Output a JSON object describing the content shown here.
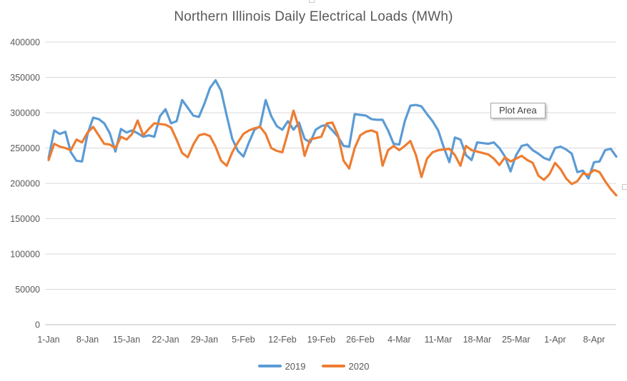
{
  "tooltip": {
    "label": "Plot Area"
  },
  "chart_data": {
    "type": "line",
    "title": "Northern Illinois Daily Electrical Loads (MWh)",
    "xlabel": "",
    "ylabel": "",
    "ylim": [
      0,
      400000
    ],
    "grid": true,
    "legend_position": "bottom",
    "x_start_date": "1-Jan",
    "x_tick_interval_days": 7,
    "x_tick_labels": [
      "1-Jan",
      "8-Jan",
      "15-Jan",
      "22-Jan",
      "29-Jan",
      "5-Feb",
      "12-Feb",
      "19-Feb",
      "26-Feb",
      "4-Mar",
      "11-Mar",
      "18-Mar",
      "25-Mar",
      "1-Apr",
      "8-Apr"
    ],
    "y_tick_labels": [
      "0",
      "50000",
      "100000",
      "150000",
      "200000",
      "250000",
      "300000",
      "350000",
      "400000"
    ],
    "series": [
      {
        "name": "2019",
        "color": "#5B9BD5",
        "values": [
          236000,
          275000,
          270000,
          273000,
          244000,
          232000,
          231000,
          270000,
          293000,
          291000,
          285000,
          271000,
          245000,
          277000,
          272000,
          275000,
          271000,
          266000,
          268000,
          266000,
          295000,
          305000,
          285000,
          288000,
          318000,
          307000,
          296000,
          294000,
          313000,
          335000,
          346000,
          331000,
          296000,
          263000,
          246000,
          238000,
          258000,
          276000,
          281000,
          318000,
          295000,
          281000,
          276000,
          288000,
          276000,
          286000,
          263000,
          258000,
          276000,
          281000,
          283000,
          275000,
          266000,
          253000,
          252000,
          298000,
          297000,
          296000,
          291000,
          290000,
          290000,
          275000,
          256000,
          255000,
          288000,
          310000,
          311000,
          309000,
          298000,
          288000,
          275000,
          251000,
          230000,
          265000,
          262000,
          240000,
          233000,
          258000,
          257000,
          256000,
          258000,
          250000,
          238000,
          217000,
          240000,
          253000,
          255000,
          247000,
          242000,
          236000,
          233000,
          250000,
          252000,
          248000,
          242000,
          216000,
          218000,
          207000,
          230000,
          231000,
          247000,
          249000,
          238000
        ]
      },
      {
        "name": "2020",
        "color": "#ED7D31",
        "values": [
          233000,
          256000,
          252000,
          250000,
          247000,
          262000,
          258000,
          272000,
          280000,
          268000,
          256000,
          255000,
          250000,
          266000,
          262000,
          270000,
          289000,
          268000,
          277000,
          285000,
          284000,
          283000,
          279000,
          262000,
          243000,
          237000,
          255000,
          268000,
          270000,
          267000,
          252000,
          232000,
          225000,
          244000,
          258000,
          270000,
          275000,
          278000,
          280000,
          270000,
          250000,
          246000,
          244000,
          272000,
          303000,
          278000,
          239000,
          262000,
          264000,
          266000,
          285000,
          286000,
          268000,
          232000,
          221000,
          250000,
          268000,
          273000,
          275000,
          272000,
          225000,
          247000,
          253000,
          247000,
          253000,
          260000,
          240000,
          209000,
          235000,
          244000,
          247000,
          248000,
          249000,
          240000,
          225000,
          253000,
          247000,
          245000,
          243000,
          241000,
          235000,
          226000,
          237000,
          231000,
          235000,
          239000,
          233000,
          229000,
          211000,
          205000,
          213000,
          229000,
          220000,
          207000,
          199000,
          203000,
          214000,
          212000,
          219000,
          216000,
          203000,
          192000,
          183000
        ]
      }
    ]
  },
  "colors": {
    "gridline": "#D9D9D9",
    "axis_line": "#BFBFBF",
    "tick_text": "#595959",
    "title_text": "#595959"
  }
}
